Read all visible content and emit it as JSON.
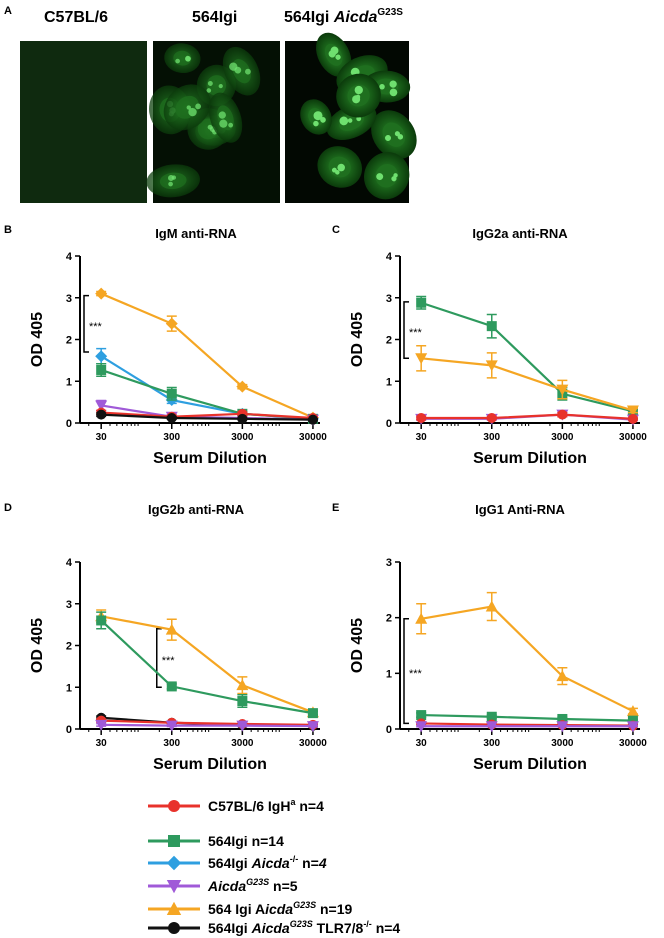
{
  "panel_a": {
    "letter": "A",
    "labels": [
      {
        "text": "C57BL/6",
        "sup": ""
      },
      {
        "text": "564Igi",
        "sup": ""
      },
      {
        "text": "564Igi ",
        "ital": "Aicda",
        "sup": "G23S"
      }
    ]
  },
  "chart_data": [
    {
      "type": "line",
      "panel": "B",
      "title": "IgM anti-RNA",
      "xlabel": "Serum Dilution",
      "ylabel": "OD 405",
      "x_scale": "log",
      "x": [
        30,
        300,
        3000,
        30000
      ],
      "xticks": [
        "30",
        "300",
        "3000",
        "30000"
      ],
      "ylim": [
        0,
        4
      ],
      "yticks": [
        0,
        1,
        2,
        3,
        4
      ],
      "annotation": {
        "text": "***",
        "bracket": [
          1.7,
          3.05
        ]
      },
      "series": [
        {
          "name": "564 Igi AicdaG23S n=19",
          "color": "#f5a623",
          "marker": "diamond",
          "values": [
            3.1,
            2.38,
            0.87,
            0.13
          ],
          "err": [
            0.05,
            0.18,
            0.05,
            0.02
          ]
        },
        {
          "name": "564Igi Aicda-/- n=4",
          "color": "#2e9fe0",
          "marker": "diamond",
          "values": [
            1.6,
            0.55,
            0.22,
            0.1
          ],
          "err": [
            0.18,
            0.08,
            0.04,
            0.02
          ]
        },
        {
          "name": "564Igi n=14",
          "color": "#2e9a5e",
          "marker": "square",
          "values": [
            1.27,
            0.7,
            0.22,
            0.1
          ],
          "err": [
            0.15,
            0.15,
            0.04,
            0.02
          ]
        },
        {
          "name": "AicdaG23S n=5",
          "color": "#a05ad8",
          "marker": "triangle-down",
          "values": [
            0.42,
            0.15,
            0.12,
            0.08
          ],
          "err": [
            0.12,
            0.04,
            0.03,
            0.02
          ]
        },
        {
          "name": "C57BL/6 IgHa n=4",
          "color": "#e8322b",
          "marker": "circle",
          "values": [
            0.25,
            0.15,
            0.22,
            0.12
          ],
          "err": [
            0.05,
            0.04,
            0.04,
            0.02
          ]
        },
        {
          "name": "564Igi AicdaG23S TLR7/8-/- n=4",
          "color": "#111111",
          "marker": "circle",
          "values": [
            0.2,
            0.12,
            0.1,
            0.08
          ],
          "err": [
            0.04,
            0.03,
            0.02,
            0.02
          ]
        }
      ]
    },
    {
      "type": "line",
      "panel": "C",
      "title": "IgG2a anti-RNA",
      "xlabel": "Serum Dilution",
      "ylabel": "OD 405",
      "x_scale": "log",
      "x": [
        30,
        300,
        3000,
        30000
      ],
      "xticks": [
        "30",
        "300",
        "3000",
        "30000"
      ],
      "ylim": [
        0,
        4
      ],
      "yticks": [
        0,
        1,
        2,
        3,
        4
      ],
      "annotation": {
        "text": "***",
        "bracket": [
          1.55,
          2.9
        ]
      },
      "series": [
        {
          "name": "564Igi n=14",
          "color": "#2e9a5e",
          "marker": "square",
          "values": [
            2.88,
            2.32,
            0.7,
            0.28
          ],
          "err": [
            0.15,
            0.28,
            0.15,
            0.04
          ]
        },
        {
          "name": "564 Igi AicdaG23S n=19",
          "color": "#f5a623",
          "marker": "triangle-down",
          "values": [
            1.55,
            1.38,
            0.8,
            0.3
          ],
          "err": [
            0.3,
            0.3,
            0.22,
            0.05
          ]
        },
        {
          "name": "AicdaG23S n=5",
          "color": "#a05ad8",
          "marker": "triangle-down",
          "values": [
            0.1,
            0.1,
            0.2,
            0.08
          ],
          "err": [
            0.03,
            0.03,
            0.04,
            0.02
          ]
        },
        {
          "name": "C57BL/6 IgHa n=4",
          "color": "#e8322b",
          "marker": "circle",
          "values": [
            0.12,
            0.12,
            0.2,
            0.1
          ],
          "err": [
            0.04,
            0.03,
            0.05,
            0.02
          ]
        }
      ]
    },
    {
      "type": "line",
      "panel": "D",
      "title": "IgG2b anti-RNA",
      "xlabel": "Serum Dilution",
      "ylabel": "OD 405",
      "x_scale": "log",
      "x": [
        30,
        300,
        3000,
        30000
      ],
      "xticks": [
        "30",
        "300",
        "3000",
        "30000"
      ],
      "ylim": [
        0,
        4
      ],
      "yticks": [
        0,
        1,
        2,
        3,
        4
      ],
      "annotation": {
        "text": "***",
        "bracket": [
          1.0,
          2.4
        ]
      },
      "series": [
        {
          "name": "564 Igi AicdaG23S n=19",
          "color": "#f5a623",
          "marker": "triangle",
          "values": [
            2.7,
            2.38,
            1.05,
            0.4
          ],
          "err": [
            0.15,
            0.25,
            0.2,
            0.05
          ]
        },
        {
          "name": "564Igi n=14",
          "color": "#2e9a5e",
          "marker": "square",
          "values": [
            2.6,
            1.02,
            0.67,
            0.38
          ],
          "err": [
            0.2,
            0.06,
            0.15,
            0.04
          ]
        },
        {
          "name": "564Igi AicdaG23S TLR7/8-/- n=4",
          "color": "#111111",
          "marker": "circle",
          "values": [
            0.27,
            0.15,
            0.1,
            0.08
          ],
          "err": [
            0.04,
            0.03,
            0.02,
            0.02
          ]
        },
        {
          "name": "C57BL/6 IgHa n=4",
          "color": "#e8322b",
          "marker": "circle",
          "values": [
            0.2,
            0.15,
            0.12,
            0.1
          ],
          "err": [
            0.04,
            0.03,
            0.02,
            0.02
          ]
        },
        {
          "name": "AicdaG23S n=5",
          "color": "#a05ad8",
          "marker": "triangle-down",
          "values": [
            0.1,
            0.08,
            0.08,
            0.07
          ],
          "err": [
            0.03,
            0.02,
            0.02,
            0.02
          ]
        }
      ]
    },
    {
      "type": "line",
      "panel": "E",
      "title": "IgG1 Anti-RNA",
      "xlabel": "Serum Dilution",
      "ylabel": "OD 405",
      "x_scale": "log",
      "x": [
        30,
        300,
        3000,
        30000
      ],
      "xticks": [
        "30",
        "300",
        "3000",
        "30000"
      ],
      "ylim": [
        0,
        3
      ],
      "yticks": [
        0,
        1,
        2,
        3
      ],
      "annotation": {
        "text": "***",
        "bracket": [
          0.1,
          1.98
        ]
      },
      "series": [
        {
          "name": "564 Igi AicdaG23S n=19",
          "color": "#f5a623",
          "marker": "triangle",
          "values": [
            1.98,
            2.2,
            0.95,
            0.32
          ],
          "err": [
            0.27,
            0.25,
            0.15,
            0.05
          ]
        },
        {
          "name": "564Igi n=14",
          "color": "#2e9a5e",
          "marker": "square",
          "values": [
            0.25,
            0.22,
            0.18,
            0.15
          ],
          "err": [
            0.04,
            0.03,
            0.03,
            0.02
          ]
        },
        {
          "name": "C57BL/6 IgHa n=4",
          "color": "#e8322b",
          "marker": "circle",
          "values": [
            0.1,
            0.08,
            0.07,
            0.06
          ],
          "err": [
            0.02,
            0.02,
            0.02,
            0.02
          ]
        },
        {
          "name": "AicdaG23S n=5",
          "color": "#a05ad8",
          "marker": "triangle-down",
          "values": [
            0.05,
            0.05,
            0.05,
            0.05
          ],
          "err": [
            0.01,
            0.01,
            0.01,
            0.01
          ]
        }
      ]
    }
  ],
  "legend": [
    {
      "parts": [
        {
          "t": "C57BL/6 IgH"
        },
        {
          "t": "a",
          "sup": true
        },
        {
          "t": " n=4"
        }
      ],
      "color": "#e8322b",
      "marker": "circle"
    },
    {
      "parts": [
        {
          "t": "564Igi n=14"
        }
      ],
      "color": "#2e9a5e",
      "marker": "square"
    },
    {
      "parts": [
        {
          "t": "564Igi "
        },
        {
          "t": "Aicda",
          "ital": true
        },
        {
          "t": "-/-",
          "sup": true
        },
        {
          "t": " n="
        },
        {
          "t": "4",
          "ital": true
        }
      ],
      "color": "#2e9fe0",
      "marker": "diamond"
    },
    {
      "parts": [
        {
          "t": "Aicda",
          "ital": true
        },
        {
          "t": "G23S",
          "sup": true,
          "ital": true
        },
        {
          "t": "  n=5"
        }
      ],
      "color": "#a05ad8",
      "marker": "triangle-down"
    },
    {
      "parts": [
        {
          "t": "564 Igi A"
        },
        {
          "t": "icda",
          "ital": true
        },
        {
          "t": "G23S",
          "sup": true,
          "ital": true
        },
        {
          "t": " n=19"
        }
      ],
      "color": "#f5a623",
      "marker": "triangle"
    },
    {
      "parts": [
        {
          "t": "564Igi "
        },
        {
          "t": "Aicda",
          "ital": true
        },
        {
          "t": "G23S",
          "sup": true,
          "ital": true
        },
        {
          "t": " TLR7/8"
        },
        {
          "t": "-/-",
          "sup": true
        },
        {
          "t": " n=4"
        }
      ],
      "color": "#111111",
      "marker": "circle"
    }
  ]
}
